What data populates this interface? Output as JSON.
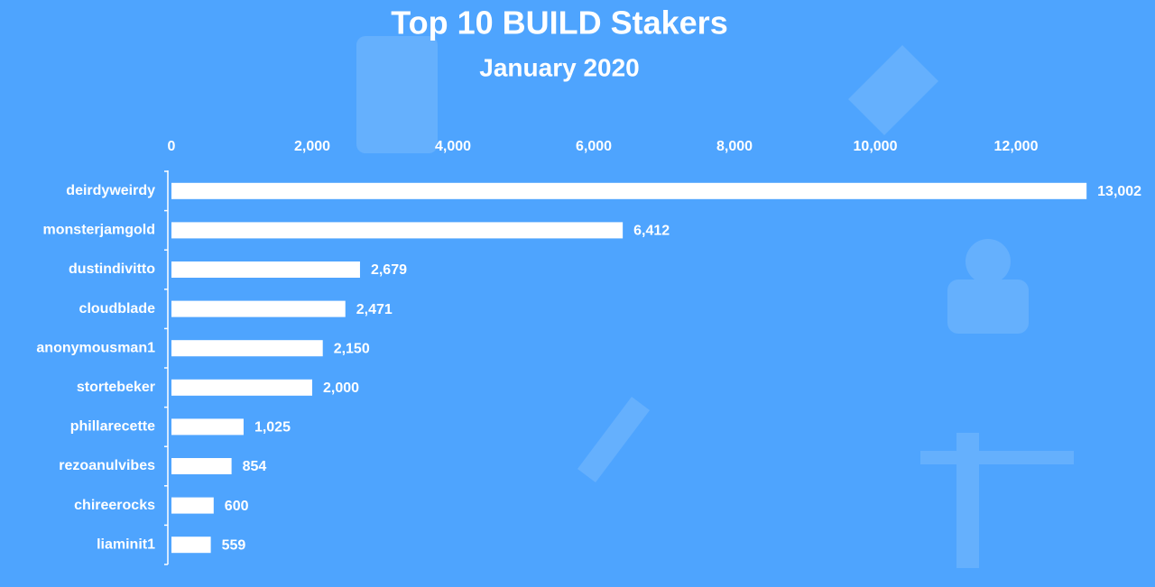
{
  "chart_data": {
    "type": "bar",
    "orientation": "horizontal",
    "title": "Top 10 BUILD Stakers",
    "subtitle": "January 2020",
    "categories": [
      "deirdyweirdy",
      "monsterjamgold",
      "dustindivitto",
      "cloudblade",
      "anonymousman1",
      "stortebeker",
      "phillarecette",
      "rezoanulvibes",
      "chireerocks",
      "liaminit1"
    ],
    "values": [
      13002,
      6412,
      2679,
      2471,
      2150,
      2000,
      1025,
      854,
      600,
      559
    ],
    "value_labels": [
      "13,002",
      "6,412",
      "2,679",
      "2,471",
      "2,150",
      "2,000",
      "1,025",
      "854",
      "600",
      "559"
    ],
    "color": "#ffffff",
    "xlim": [
      0,
      13000
    ],
    "xticks": [
      0,
      {
        "value": 2000,
        "label": "2,000"
      },
      {
        "value": 4000,
        "label": "4,000"
      },
      {
        "value": 6000,
        "label": "6,000"
      },
      {
        "value": 8000,
        "label": "8,000"
      },
      {
        "value": 10000,
        "label": "10,000"
      },
      {
        "value": 12000,
        "label": "12,000"
      }
    ]
  }
}
